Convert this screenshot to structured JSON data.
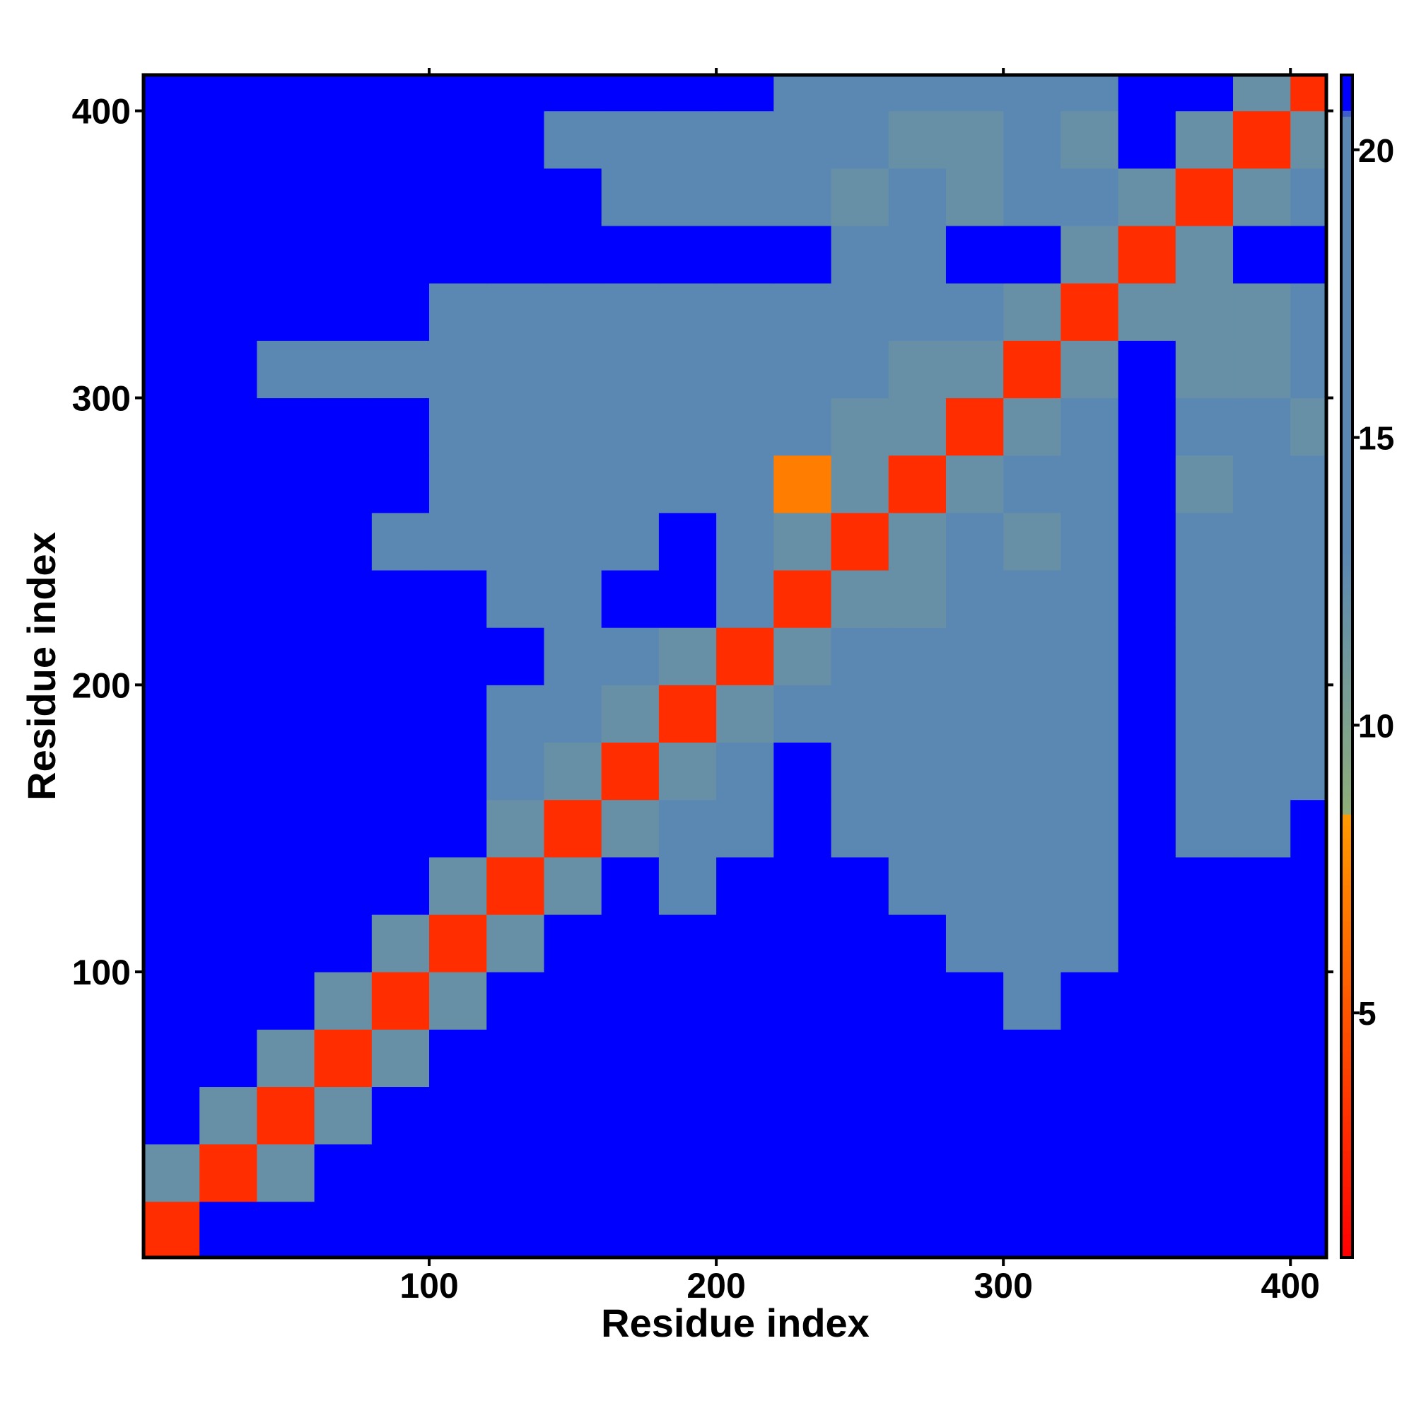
{
  "chart_data": {
    "type": "heatmap",
    "xlabel": "Residue index",
    "ylabel": "Residue index",
    "x": [
      10,
      30,
      50,
      70,
      90,
      110,
      130,
      150,
      170,
      190,
      210,
      230,
      250,
      270,
      290,
      310,
      330,
      350,
      370,
      390,
      410
    ],
    "y": [
      10,
      30,
      50,
      70,
      90,
      110,
      130,
      150,
      170,
      190,
      210,
      230,
      250,
      270,
      290,
      310,
      330,
      350,
      370,
      390,
      410
    ],
    "z": [
      [
        3,
        21,
        21,
        21,
        21,
        21,
        21,
        21,
        21,
        21,
        21,
        21,
        21,
        21,
        21,
        21,
        21,
        21,
        21,
        21,
        21
      ],
      [
        12,
        3,
        12,
        21,
        21,
        21,
        21,
        21,
        21,
        21,
        21,
        21,
        21,
        21,
        21,
        21,
        21,
        21,
        21,
        21,
        21
      ],
      [
        21,
        12,
        3,
        12,
        21,
        21,
        21,
        21,
        21,
        21,
        21,
        21,
        21,
        21,
        21,
        21,
        21,
        21,
        21,
        21,
        21
      ],
      [
        21,
        21,
        12,
        3,
        12,
        21,
        21,
        21,
        21,
        21,
        21,
        21,
        21,
        21,
        21,
        21,
        21,
        21,
        21,
        21,
        21
      ],
      [
        21,
        21,
        21,
        12,
        3,
        12,
        21,
        21,
        21,
        21,
        21,
        21,
        21,
        21,
        21,
        17,
        21,
        21,
        21,
        21,
        21
      ],
      [
        21,
        21,
        21,
        21,
        12,
        3,
        12,
        21,
        21,
        21,
        21,
        21,
        21,
        21,
        17,
        17,
        17,
        21,
        21,
        21,
        21
      ],
      [
        21,
        21,
        21,
        21,
        21,
        12,
        3,
        12,
        21,
        17,
        21,
        21,
        21,
        17,
        17,
        17,
        17,
        21,
        21,
        21,
        21
      ],
      [
        21,
        21,
        21,
        21,
        21,
        21,
        12,
        3,
        12,
        17,
        17,
        21,
        17,
        17,
        17,
        17,
        17,
        21,
        17,
        17,
        21
      ],
      [
        21,
        21,
        21,
        21,
        21,
        21,
        17,
        12,
        3,
        12,
        17,
        21,
        17,
        17,
        17,
        17,
        17,
        21,
        17,
        17,
        17
      ],
      [
        21,
        21,
        21,
        21,
        21,
        21,
        17,
        17,
        12,
        3,
        12,
        17,
        17,
        17,
        17,
        17,
        17,
        21,
        17,
        17,
        17
      ],
      [
        21,
        21,
        21,
        21,
        21,
        21,
        21,
        17,
        17,
        12,
        3,
        12,
        17,
        17,
        17,
        17,
        17,
        21,
        17,
        17,
        17
      ],
      [
        21,
        21,
        21,
        21,
        21,
        21,
        17,
        17,
        21,
        21,
        17,
        3,
        12,
        12,
        17,
        17,
        17,
        21,
        17,
        17,
        17
      ],
      [
        21,
        21,
        21,
        21,
        17,
        17,
        17,
        17,
        17,
        21,
        17,
        12,
        3,
        12,
        17,
        12,
        17,
        21,
        17,
        17,
        17
      ],
      [
        21,
        21,
        21,
        21,
        21,
        17,
        17,
        17,
        17,
        17,
        17,
        7,
        12,
        3,
        12,
        17,
        17,
        21,
        12,
        17,
        17
      ],
      [
        21,
        21,
        21,
        21,
        21,
        17,
        17,
        17,
        17,
        17,
        17,
        17,
        12,
        12,
        3,
        12,
        17,
        21,
        17,
        17,
        12
      ],
      [
        21,
        21,
        17,
        17,
        17,
        17,
        17,
        17,
        17,
        17,
        17,
        17,
        17,
        12,
        12,
        3,
        12,
        21,
        12,
        12,
        17
      ],
      [
        21,
        21,
        21,
        21,
        21,
        17,
        17,
        17,
        17,
        17,
        17,
        17,
        17,
        17,
        17,
        12,
        3,
        12,
        12,
        12,
        17
      ],
      [
        21,
        21,
        21,
        21,
        21,
        21,
        21,
        21,
        21,
        21,
        21,
        21,
        17,
        17,
        21,
        21,
        12,
        3,
        12,
        21,
        21
      ],
      [
        21,
        21,
        21,
        21,
        21,
        21,
        21,
        21,
        17,
        17,
        17,
        17,
        12,
        17,
        12,
        17,
        17,
        12,
        3,
        12,
        17
      ],
      [
        21,
        21,
        21,
        21,
        21,
        21,
        21,
        17,
        17,
        17,
        17,
        17,
        17,
        12,
        12,
        17,
        12,
        21,
        12,
        3,
        12
      ],
      [
        21,
        21,
        21,
        21,
        21,
        21,
        21,
        21,
        21,
        21,
        21,
        17,
        17,
        17,
        17,
        17,
        17,
        21,
        21,
        12,
        3
      ]
    ],
    "xlim": [
      0.5,
      412.5
    ],
    "ylim": [
      0.5,
      412.5
    ],
    "xticks": [
      100,
      200,
      300,
      400
    ],
    "yticks": [
      100,
      200,
      300,
      400
    ],
    "colorscale": [
      [
        0.75,
        "#ff0000"
      ],
      [
        8.4,
        "#ff9900"
      ],
      [
        8.5,
        "#8fae7a"
      ],
      [
        13,
        "#5b88b3"
      ],
      [
        20.6,
        "#5b88b3"
      ],
      [
        20.7,
        "#0000ff"
      ],
      [
        21.3,
        "#0000ff"
      ]
    ],
    "colorbar": {
      "lim": [
        0.75,
        21.3
      ],
      "ticks": [
        5,
        10,
        15,
        20
      ]
    }
  }
}
